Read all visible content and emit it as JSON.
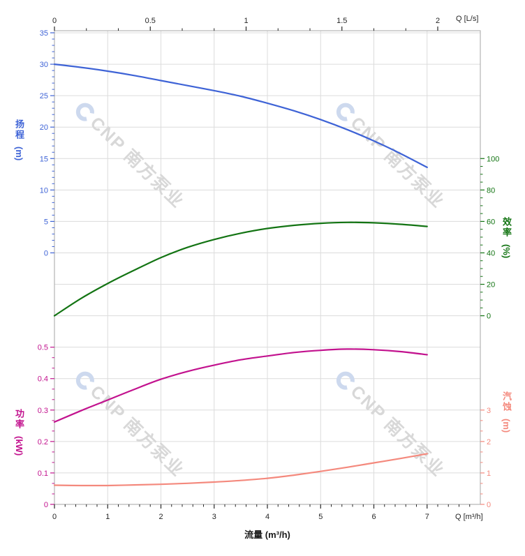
{
  "watermark": {
    "text": "CNP 南方泵业",
    "count": 4,
    "text_color": "#d8d8d8",
    "logo_color": "#cdd9ee"
  },
  "axes": {
    "top": {
      "label": "Q [L/s]",
      "ticks": [
        0,
        0.5,
        1,
        1.5,
        2
      ],
      "minor_per_interval": 2,
      "color": "#262626"
    },
    "bottom": {
      "title": "流量 (m³/h)",
      "label": "Q [m³/h]",
      "ticks": [
        0,
        1,
        2,
        3,
        4,
        5,
        6,
        7
      ],
      "minor_per_interval": 4,
      "color": "#262626"
    },
    "head": {
      "title": "扬程",
      "unit": "(m)",
      "ticks": [
        35,
        30,
        25,
        20,
        15,
        10,
        5,
        0
      ],
      "minor_per_interval": 4,
      "color": "#3e63d6"
    },
    "power": {
      "title": "功率",
      "unit": "(kW)",
      "ticks": [
        0.5,
        0.4,
        0.3,
        0.2,
        0.1,
        0
      ],
      "minor_per_interval": 2,
      "color": "#c2128e"
    },
    "eff": {
      "title": "效率",
      "unit": "(%)",
      "ticks": [
        100,
        80,
        60,
        40,
        20,
        0
      ],
      "minor_per_interval": 3,
      "color": "#137413"
    },
    "npsh": {
      "title": "汽蚀",
      "unit": "(m)",
      "ticks": [
        3,
        2,
        1,
        0
      ],
      "minor_per_interval": 2,
      "color": "#f4897d"
    }
  },
  "chart_data": {
    "type": "line",
    "title": "",
    "xlabel": "流量 (m³/h)",
    "xlabel_secondary_top": "Q [L/s]",
    "x_range_m3h": [
      0,
      8
    ],
    "x_range_ls": [
      0,
      2.22
    ],
    "grid": true,
    "x": [
      0,
      0.5,
      1,
      1.5,
      2,
      2.5,
      3,
      3.5,
      4,
      4.5,
      5,
      5.5,
      6,
      6.5,
      7
    ],
    "series": [
      {
        "name": "扬程",
        "unit": "m",
        "axis": "head",
        "axis_range": [
          0,
          35
        ],
        "color": "#3e63d6",
        "values": [
          30,
          29.5,
          28.9,
          28.2,
          27.4,
          26.6,
          25.8,
          24.9,
          23.8,
          22.6,
          21.2,
          19.6,
          17.8,
          15.8,
          13.6
        ]
      },
      {
        "name": "效率",
        "unit": "%",
        "axis": "eff",
        "axis_range": [
          0,
          100
        ],
        "color": "#137413",
        "values": [
          0,
          11,
          20.5,
          29,
          37,
          43.5,
          48.5,
          52.5,
          55.5,
          57.5,
          58.8,
          59.4,
          59.1,
          58.2,
          56.8
        ]
      },
      {
        "name": "功率",
        "unit": "kW",
        "axis": "power",
        "axis_range": [
          0,
          0.5
        ],
        "color": "#c2128e",
        "values": [
          0.262,
          0.298,
          0.332,
          0.366,
          0.398,
          0.423,
          0.443,
          0.46,
          0.472,
          0.483,
          0.49,
          0.494,
          0.492,
          0.486,
          0.476
        ]
      },
      {
        "name": "汽蚀",
        "unit": "m",
        "axis": "npsh",
        "axis_range": [
          0,
          3
        ],
        "color": "#f4897d",
        "values": [
          0.61,
          0.6,
          0.6,
          0.62,
          0.64,
          0.67,
          0.71,
          0.76,
          0.83,
          0.93,
          1.05,
          1.18,
          1.32,
          1.46,
          1.61
        ]
      }
    ]
  }
}
